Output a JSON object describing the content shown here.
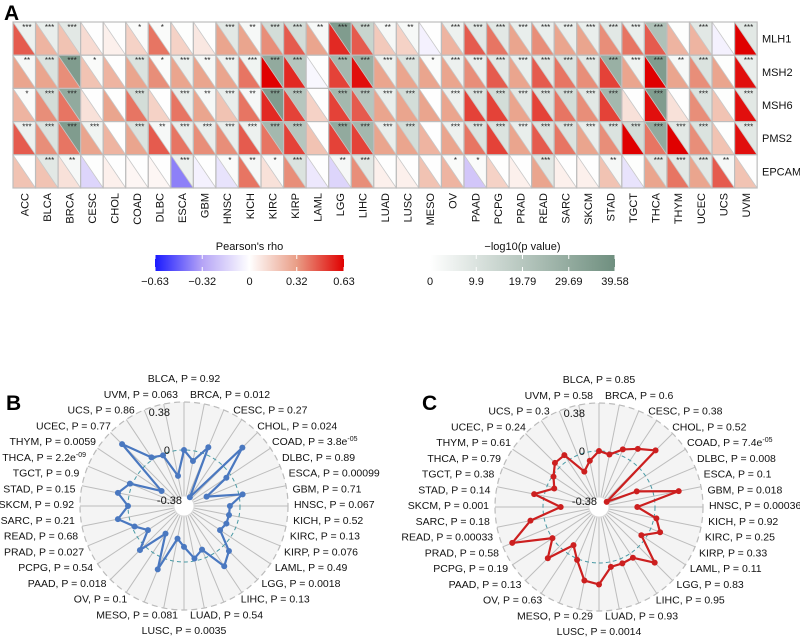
{
  "panels": {
    "a": "A",
    "b": "B",
    "c": "C"
  },
  "chart_data": [
    {
      "type": "heatmap",
      "title": "A",
      "columns": [
        "ACC",
        "BLCA",
        "BRCA",
        "CESC",
        "CHOL",
        "COAD",
        "DLBC",
        "ESCA",
        "GBM",
        "HNSC",
        "KICH",
        "KIRC",
        "KIRP",
        "LAML",
        "LGG",
        "LIHC",
        "LUAD",
        "LUSC",
        "MESO",
        "OV",
        "PAAD",
        "PCPG",
        "PRAD",
        "READ",
        "SARC",
        "SKCM",
        "STAD",
        "TGCT",
        "THCA",
        "THYM",
        "UCEC",
        "UCS",
        "UVM"
      ],
      "rows": [
        "MLH1",
        "MSH2",
        "MSH6",
        "PMS2",
        "EPCAM"
      ],
      "rho": [
        [
          0.45,
          0.25,
          0.2,
          0.12,
          0.05,
          0.15,
          0.4,
          0.15,
          0.08,
          0.3,
          0.3,
          0.35,
          0.45,
          0.3,
          0.55,
          0.45,
          0.18,
          0.15,
          -0.05,
          0.25,
          0.45,
          0.4,
          0.3,
          0.35,
          0.3,
          0.3,
          0.35,
          0.4,
          0.45,
          0.25,
          0.25,
          -0.05,
          0.63
        ],
        [
          0.3,
          0.3,
          0.35,
          0.2,
          0.25,
          0.3,
          0.35,
          0.3,
          0.3,
          0.3,
          0.4,
          0.63,
          0.55,
          -0.03,
          0.5,
          0.6,
          0.3,
          0.3,
          0.3,
          0.3,
          0.35,
          0.45,
          0.3,
          0.45,
          0.4,
          0.35,
          0.5,
          0.3,
          0.63,
          0.3,
          0.35,
          0.3,
          0.6
        ],
        [
          0.25,
          0.35,
          0.4,
          0.1,
          0.3,
          0.4,
          0.15,
          0.4,
          0.3,
          0.2,
          0.4,
          0.55,
          0.5,
          0.15,
          0.5,
          0.45,
          0.3,
          0.3,
          0.3,
          0.3,
          0.5,
          0.5,
          0.3,
          0.5,
          0.4,
          0.35,
          0.5,
          0.1,
          0.6,
          0.1,
          0.35,
          0.2,
          0.6
        ],
        [
          0.45,
          0.35,
          0.4,
          0.3,
          0.25,
          0.3,
          0.45,
          0.4,
          0.35,
          0.35,
          0.45,
          0.4,
          0.5,
          0.2,
          0.5,
          0.5,
          0.3,
          0.3,
          0.25,
          0.3,
          0.4,
          0.5,
          0.3,
          0.45,
          0.4,
          0.3,
          0.35,
          0.63,
          0.4,
          0.63,
          0.35,
          0.2,
          0.6
        ],
        [
          0.2,
          0.2,
          0.1,
          -0.15,
          0.05,
          0.03,
          0.03,
          -0.4,
          -0.05,
          -0.1,
          0.4,
          0.1,
          0.35,
          -0.08,
          -0.15,
          0.35,
          0.05,
          0.05,
          0.2,
          0.25,
          -0.2,
          0.15,
          0.05,
          0.3,
          0.05,
          0.05,
          0.2,
          -0.1,
          0.3,
          0.4,
          0.3,
          0.45,
          0.2
        ]
      ],
      "neg_log10_p": [
        [
          5,
          6,
          8,
          0.3,
          0.2,
          1.5,
          1.5,
          0.5,
          0.3,
          8,
          2.5,
          12,
          12,
          2.5,
          35,
          15,
          2.5,
          2.5,
          0.2,
          5,
          8,
          8,
          6,
          6,
          6,
          6,
          8,
          6,
          22,
          0.5,
          8,
          0.3,
          8
        ],
        [
          2.5,
          10,
          35,
          1.5,
          0.3,
          10,
          1.5,
          5,
          2.5,
          5,
          4,
          30,
          20,
          0.3,
          25,
          28,
          5,
          10,
          1.5,
          5,
          6,
          8,
          6,
          8,
          10,
          8,
          28,
          4,
          35,
          2.5,
          10,
          0.5,
          6
        ],
        [
          1.5,
          12,
          30,
          0.3,
          0.3,
          12,
          0.3,
          6,
          2.5,
          6,
          2.5,
          35,
          20,
          0.3,
          25,
          20,
          6,
          12,
          0.3,
          5,
          10,
          12,
          8,
          10,
          12,
          8,
          25,
          0.3,
          35,
          0.3,
          10,
          0.5,
          8
        ],
        [
          5,
          10,
          35,
          4,
          0.3,
          10,
          2.5,
          6,
          6,
          6,
          5,
          25,
          20,
          0.3,
          30,
          25,
          6,
          12,
          0.3,
          5,
          10,
          10,
          6,
          10,
          10,
          6,
          10,
          12,
          30,
          8,
          10,
          0.5,
          8
        ],
        [
          0.3,
          8,
          2.5,
          0.5,
          0.2,
          0.3,
          0.2,
          5,
          0.3,
          1.5,
          2.5,
          1.5,
          10,
          0.3,
          2.5,
          8,
          0.2,
          0.3,
          0.2,
          1.5,
          1.5,
          0.2,
          0.2,
          8,
          0.2,
          0.2,
          2.5,
          0.5,
          8,
          8,
          8,
          2.5,
          0.3
        ]
      ],
      "stars": [
        [
          "***",
          "***",
          "***",
          "",
          "",
          "*",
          "*",
          "",
          "",
          "***",
          "**",
          "***",
          "***",
          "**",
          "***",
          "***",
          "**",
          "**",
          "",
          "***",
          "***",
          "***",
          "***",
          "***",
          "***",
          "***",
          "***",
          "***",
          "***",
          "",
          "***",
          "",
          "***"
        ],
        [
          "**",
          "***",
          "***",
          "*",
          "",
          "***",
          "*",
          "***",
          "**",
          "***",
          "***",
          "***",
          "***",
          "",
          "***",
          "***",
          "***",
          "***",
          "*",
          "***",
          "***",
          "***",
          "***",
          "***",
          "***",
          "***",
          "***",
          "***",
          "***",
          "**",
          "***",
          "",
          "***"
        ],
        [
          "*",
          "***",
          "***",
          "",
          "",
          "***",
          "",
          "***",
          "**",
          "***",
          "**",
          "***",
          "***",
          "",
          "***",
          "***",
          "***",
          "***",
          "",
          "***",
          "***",
          "***",
          "***",
          "***",
          "***",
          "***",
          "***",
          "",
          "***",
          "",
          "***",
          "",
          "***"
        ],
        [
          "***",
          "***",
          "***",
          "***",
          "",
          "***",
          "**",
          "***",
          "***",
          "***",
          "***",
          "***",
          "***",
          "",
          "***",
          "***",
          "***",
          "***",
          "",
          "***",
          "***",
          "***",
          "***",
          "***",
          "***",
          "***",
          "***",
          "***",
          "***",
          "***",
          "***",
          "",
          "***"
        ],
        [
          "",
          "***",
          "**",
          "",
          "",
          "",
          "",
          "***",
          "",
          "*",
          "**",
          "*",
          "***",
          "",
          "**",
          "***",
          "",
          "",
          "",
          "*",
          "*",
          "",
          "",
          "***",
          "",
          "",
          "**",
          "",
          "***",
          "***",
          "***",
          "**",
          ""
        ]
      ],
      "legend_rho": {
        "title": "Pearson's rho",
        "ticks": [
          "−0.63",
          "−0.32",
          "0",
          "0.32",
          "0.63"
        ],
        "range": [
          -0.63,
          0.63
        ],
        "colors": {
          "neg": "#1a1aff",
          "mid": "#ffffff",
          "pos": "#e00000"
        }
      },
      "legend_p": {
        "title": "−log10(p value)",
        "ticks": [
          "0",
          "9.9",
          "19.79",
          "29.69",
          "39.58"
        ],
        "range": [
          0,
          39.58
        ],
        "colors": {
          "low": "#ffffff",
          "high": "#6f8f7f"
        }
      }
    },
    {
      "type": "radar",
      "title": "B",
      "color": "#4a78c0",
      "r_ticks": [
        "0.38",
        "0",
        "-0.38"
      ],
      "rlim": [
        -0.38,
        0.38
      ],
      "categories": [
        "BLCA",
        "BRCA",
        "CESC",
        "CHOL",
        "COAD",
        "DLBC",
        "ESCA",
        "GBM",
        "HNSC",
        "KICH",
        "KIRC",
        "KIRP",
        "LAML",
        "LGG",
        "LIHC",
        "LUAD",
        "LUSC",
        "MESO",
        "OV",
        "PAAD",
        "PCPG",
        "PRAD",
        "READ",
        "SARC",
        "SKCM",
        "STAD",
        "TGCT",
        "THCA",
        "THYM",
        "UCEC",
        "UCS",
        "UVM"
      ],
      "p_labels": [
        "0.92",
        "0.012",
        "0.27",
        "0.024",
        "3.8e-05",
        "0.89",
        "0.00099",
        "0.71",
        "0.067",
        "0.52",
        "0.13",
        "0.076",
        "0.49",
        "0.0018",
        "0.13",
        "0.54",
        "0.0035",
        "0.081",
        "0.1",
        "0.018",
        "0.54",
        "0.027",
        "0.68",
        "0.21",
        "0.92",
        "0.15",
        "0.9",
        "2.2e-09",
        "0.0059",
        "0.77",
        "0.86",
        "0.063"
      ],
      "values": [
        0.0,
        -0.08,
        0.06,
        -0.36,
        0.21,
        -0.04,
        -0.25,
        0.03,
        -0.08,
        -0.08,
        -0.08,
        -0.1,
        0.06,
        0.13,
        -0.07,
        -0.02,
        -0.12,
        -0.18,
        0.1,
        -0.18,
        0.05,
        -0.1,
        -0.02,
        0.09,
        0.0,
        0.09,
        0.02,
        -0.23,
        0.25,
        0.02,
        -0.01,
        -0.2
      ]
    },
    {
      "type": "radar",
      "title": "C",
      "color": "#cc1f1f",
      "r_ticks": [
        "0.38",
        "0",
        "-0.38"
      ],
      "rlim": [
        -0.38,
        0.38
      ],
      "categories": [
        "BLCA",
        "BRCA",
        "CESC",
        "CHOL",
        "COAD",
        "DLBC",
        "ESCA",
        "GBM",
        "HNSC",
        "KICH",
        "KIRC",
        "KIRP",
        "LAML",
        "LGG",
        "LIHC",
        "LUAD",
        "LUSC",
        "MESO",
        "OV",
        "PAAD",
        "PCPG",
        "PRAD",
        "READ",
        "SARC",
        "SKCM",
        "STAD",
        "TGCT",
        "THCA",
        "THYM",
        "UCEC",
        "UCS",
        "UVM"
      ],
      "p_labels": [
        "0.85",
        "0.6",
        "0.38",
        "0.52",
        "7.4e-05",
        "0.008",
        "0.1",
        "0.018",
        "0.00036",
        "0.92",
        "0.25",
        "0.33",
        "0.11",
        "0.83",
        "0.95",
        "0.93",
        "0.0014",
        "0.29",
        "0.63",
        "0.13",
        "0.19",
        "0.58",
        "0.00033",
        "0.18",
        "0.001",
        "0.14",
        "0.38",
        "0.79",
        "0.61",
        "0.24",
        "0.3",
        "0.58"
      ],
      "values": [
        0.0,
        -0.02,
        0.05,
        0.11,
        0.19,
        -0.37,
        -0.12,
        0.2,
        -0.14,
        0.02,
        0.08,
        -0.04,
        0.18,
        0.04,
        0.04,
        0.04,
        0.17,
        0.15,
        0.01,
        -0.08,
        0.13,
        0.0,
        0.3,
        0.11,
        -0.14,
        0.08,
        -0.06,
        -0.01,
        0.05,
        0.05,
        -0.14,
        -0.07
      ]
    }
  ]
}
